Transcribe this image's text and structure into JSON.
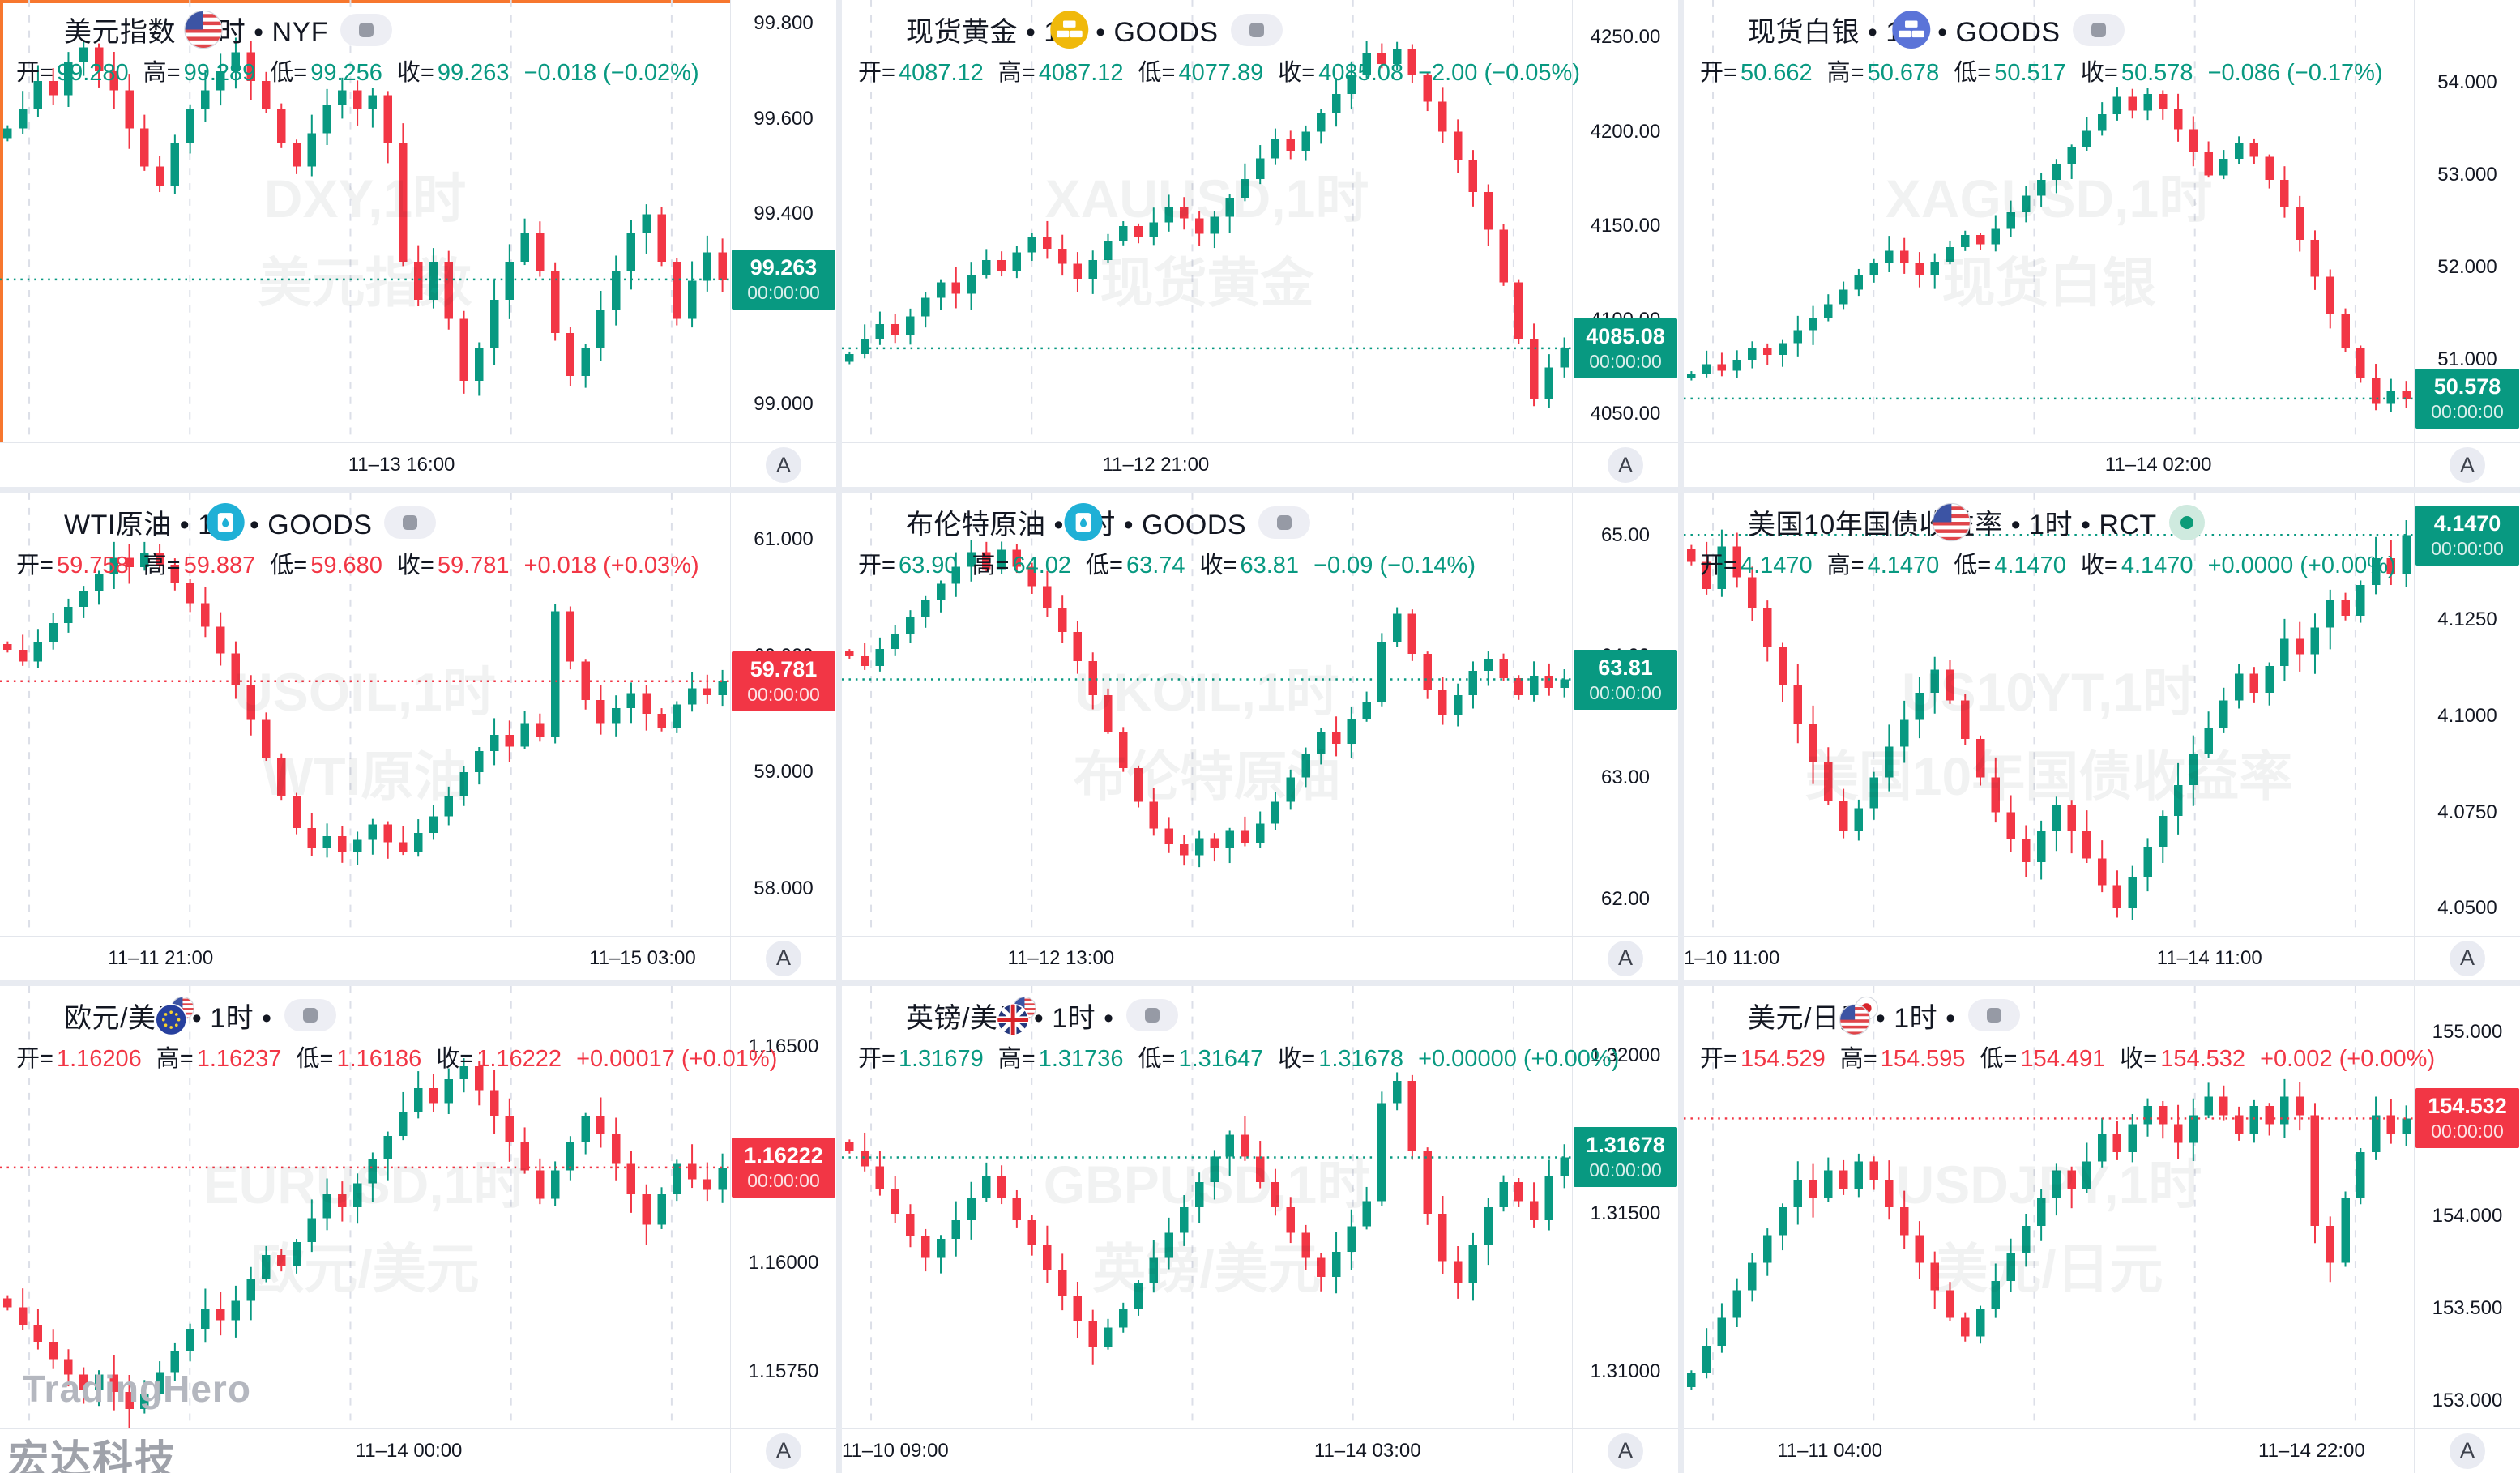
{
  "app": {
    "watermark_brand": "TradingHero",
    "watermark_vendor": "宏达科技",
    "autoscale_label": "A",
    "countdown": "00:00:00",
    "ohlc_labels": {
      "open": "开",
      "high": "高",
      "low": "低",
      "close": "收"
    }
  },
  "colors": {
    "up": "#089981",
    "down": "#F23645",
    "selection": "#f7772e",
    "axis_text": "#131722",
    "gridline": "#dcdfe8",
    "watermark": "rgba(22,26,37,0.06)"
  },
  "chart_data": [
    {
      "id": "dxy",
      "type": "candlestick",
      "selected": true,
      "brand_watermark": false,
      "title": "美元指数 • 1时 • NYF",
      "icon": "us-flag",
      "status": "pill",
      "ohlc": {
        "o": "99.280",
        "h": "99.289",
        "l": "99.256",
        "c": "99.263",
        "change": "−0.018 (−0.02%)",
        "color": "#089981"
      },
      "watermark": [
        "DXY,1时",
        "美元指数"
      ],
      "price_label": {
        "value": "99.263",
        "color": "#089981"
      },
      "y_ticks": [
        {
          "v": 99.8,
          "t": "99.800"
        },
        {
          "v": 99.6,
          "t": "99.600"
        },
        {
          "v": 99.4,
          "t": "99.400"
        },
        {
          "v": 99.0,
          "t": "99.000"
        }
      ],
      "x_ticks": [
        {
          "pct": 55,
          "t": "11–13 16:00"
        }
      ],
      "ylim": [
        98.92,
        99.85
      ],
      "wick": 0.045,
      "last": 99.263,
      "closes": [
        99.58,
        99.62,
        99.68,
        99.65,
        99.72,
        99.75,
        99.7,
        99.66,
        99.58,
        99.5,
        99.46,
        99.55,
        99.62,
        99.66,
        99.7,
        99.74,
        99.68,
        99.62,
        99.55,
        99.5,
        99.57,
        99.63,
        99.66,
        99.62,
        99.65,
        99.55,
        99.3,
        99.22,
        99.3,
        99.18,
        99.05,
        99.12,
        99.22,
        99.3,
        99.36,
        99.28,
        99.15,
        99.06,
        99.12,
        99.2,
        99.28,
        99.36,
        99.4,
        99.3,
        99.18,
        99.26,
        99.32,
        99.263
      ]
    },
    {
      "id": "xauusd",
      "type": "candlestick",
      "selected": false,
      "brand_watermark": false,
      "title": "现货黄金 • 1时 • GOODS",
      "icon": "gold",
      "status": "pill",
      "ohlc": {
        "o": "4087.12",
        "h": "4087.12",
        "l": "4077.89",
        "c": "4085.08",
        "change": "−2.00 (−0.05%)",
        "color": "#089981"
      },
      "watermark": [
        "XAUUSD,1时",
        "现货黄金"
      ],
      "price_label": {
        "value": "4085.08",
        "color": "#089981"
      },
      "y_ticks": [
        {
          "v": 4250,
          "t": "4250.00"
        },
        {
          "v": 4200,
          "t": "4200.00"
        },
        {
          "v": 4150,
          "t": "4150.00"
        },
        {
          "v": 4100,
          "t": "4100.00"
        },
        {
          "v": 4050,
          "t": "4050.00"
        }
      ],
      "x_ticks": [
        {
          "pct": 43,
          "t": "11–12 21:00"
        }
      ],
      "ylim": [
        4035,
        4270
      ],
      "wick": 9,
      "last": 4085.08,
      "closes": [
        4082,
        4090,
        4098,
        4092,
        4102,
        4112,
        4120,
        4114,
        4124,
        4132,
        4126,
        4136,
        4144,
        4138,
        4130,
        4122,
        4132,
        4142,
        4150,
        4144,
        4152,
        4160,
        4154,
        4146,
        4155,
        4165,
        4175,
        4186,
        4196,
        4190,
        4200,
        4210,
        4220,
        4230,
        4242,
        4236,
        4244,
        4230,
        4216,
        4200,
        4185,
        4168,
        4148,
        4120,
        4090,
        4058,
        4075,
        4085.08
      ]
    },
    {
      "id": "xagusd",
      "type": "candlestick",
      "selected": false,
      "brand_watermark": false,
      "title": "现货白银 • 1时 • GOODS",
      "icon": "silver",
      "status": "pill",
      "ohlc": {
        "o": "50.662",
        "h": "50.678",
        "l": "50.517",
        "c": "50.578",
        "change": "−0.086 (−0.17%)",
        "color": "#089981"
      },
      "watermark": [
        "XAGUSD,1时",
        "现货白银"
      ],
      "price_label": {
        "value": "50.578",
        "color": "#089981"
      },
      "y_ticks": [
        {
          "v": 54,
          "t": "54.000"
        },
        {
          "v": 53,
          "t": "53.000"
        },
        {
          "v": 52,
          "t": "52.000"
        },
        {
          "v": 51,
          "t": "51.000"
        }
      ],
      "x_ticks": [
        {
          "pct": 65,
          "t": "11–14 02:00"
        }
      ],
      "ylim": [
        50.1,
        54.9
      ],
      "wick": 0.17,
      "last": 50.578,
      "closes": [
        50.85,
        50.95,
        50.88,
        51.0,
        51.12,
        51.05,
        51.18,
        51.32,
        51.45,
        51.6,
        51.76,
        51.92,
        52.05,
        52.18,
        52.05,
        51.92,
        52.06,
        52.22,
        52.35,
        52.25,
        52.42,
        52.6,
        52.78,
        52.95,
        53.12,
        53.3,
        53.48,
        53.66,
        53.85,
        53.7,
        53.88,
        53.72,
        53.5,
        53.25,
        53.0,
        53.18,
        53.35,
        53.2,
        52.95,
        52.65,
        52.3,
        51.9,
        51.5,
        51.12,
        50.8,
        50.52,
        50.66,
        50.578
      ]
    },
    {
      "id": "usoil",
      "type": "candlestick",
      "selected": false,
      "brand_watermark": false,
      "title": "WTI原油 • 1时 • GOODS",
      "icon": "oil",
      "status": "pill",
      "ohlc": {
        "o": "59.758",
        "h": "59.887",
        "l": "59.680",
        "c": "59.781",
        "change": "+0.018 (+0.03%)",
        "color": "#F23645"
      },
      "watermark": [
        "USOIL,1时",
        "WTI原油"
      ],
      "price_label": {
        "value": "59.781",
        "color": "#F23645"
      },
      "y_ticks": [
        {
          "v": 61,
          "t": "61.000"
        },
        {
          "v": 60,
          "t": "60.000"
        },
        {
          "v": 59,
          "t": "59.000"
        },
        {
          "v": 58,
          "t": "58.000"
        }
      ],
      "x_ticks": [
        {
          "pct": 22,
          "t": "11–11 21:00"
        },
        {
          "pct": 88,
          "t": "11–15 03:00"
        }
      ],
      "ylim": [
        57.6,
        61.4
      ],
      "wick": 0.15,
      "last": 59.781,
      "closes": [
        60.05,
        59.95,
        60.12,
        60.28,
        60.42,
        60.55,
        60.7,
        60.84,
        60.76,
        60.88,
        60.78,
        60.62,
        60.45,
        60.25,
        60.02,
        59.75,
        59.45,
        59.12,
        58.8,
        58.52,
        58.35,
        58.45,
        58.32,
        58.42,
        58.55,
        58.4,
        58.32,
        58.48,
        58.62,
        58.8,
        59.0,
        59.18,
        59.32,
        59.22,
        59.42,
        59.3,
        60.38,
        59.95,
        59.62,
        59.42,
        59.55,
        59.68,
        59.5,
        59.38,
        59.58,
        59.72,
        59.66,
        59.781
      ]
    },
    {
      "id": "ukoil",
      "type": "candlestick",
      "selected": false,
      "brand_watermark": false,
      "title": "布伦特原油 • 1时 • GOODS",
      "icon": "oil",
      "status": "pill",
      "ohlc": {
        "o": "63.90",
        "h": "64.02",
        "l": "63.74",
        "c": "63.81",
        "change": "−0.09 (−0.14%)",
        "color": "#089981"
      },
      "watermark": [
        "UKOIL,1时",
        "布伦特原油"
      ],
      "price_label": {
        "value": "63.81",
        "color": "#089981"
      },
      "y_ticks": [
        {
          "v": 65,
          "t": "65.00"
        },
        {
          "v": 64,
          "t": "64.00"
        },
        {
          "v": 63,
          "t": "63.00"
        },
        {
          "v": 62,
          "t": "62.00"
        }
      ],
      "x_ticks": [
        {
          "pct": 30,
          "t": "11–12 13:00"
        }
      ],
      "ylim": [
        61.7,
        65.35
      ],
      "wick": 0.13,
      "last": 63.81,
      "closes": [
        64.0,
        63.92,
        64.06,
        64.18,
        64.32,
        64.46,
        64.6,
        64.74,
        64.86,
        64.72,
        64.88,
        64.74,
        64.58,
        64.4,
        64.2,
        63.96,
        63.68,
        63.38,
        63.08,
        62.8,
        62.58,
        62.45,
        62.36,
        62.5,
        62.42,
        62.56,
        62.46,
        62.62,
        62.8,
        63.0,
        63.2,
        63.38,
        63.28,
        63.48,
        63.62,
        64.12,
        64.35,
        64.02,
        63.72,
        63.52,
        63.68,
        63.88,
        63.98,
        63.82,
        63.68,
        63.84,
        63.74,
        63.81
      ]
    },
    {
      "id": "us10yt",
      "type": "candlestick",
      "selected": false,
      "brand_watermark": false,
      "title": "美国10年国债收益率 • 1时 • RCT",
      "icon": "us-flag",
      "status": "dot",
      "ohlc": {
        "o": "4.1470",
        "h": "4.1470",
        "l": "4.1470",
        "c": "4.1470",
        "change": "+0.0000 (+0.00%)",
        "color": "#089981"
      },
      "watermark": [
        "US10YT,1时",
        "美国10年国债收益率"
      ],
      "price_label": {
        "value": "4.1470",
        "color": "#089981"
      },
      "y_ticks": [
        {
          "v": 4.125,
          "t": "4.1250"
        },
        {
          "v": 4.1,
          "t": "4.1000"
        },
        {
          "v": 4.075,
          "t": "4.0750"
        },
        {
          "v": 4.05,
          "t": "4.0500"
        }
      ],
      "x_ticks": [
        {
          "pct": 0,
          "t": "1–10 11:00",
          "cut": true
        },
        {
          "pct": 72,
          "t": "11–14 11:00"
        }
      ],
      "ylim": [
        4.043,
        4.158
      ],
      "wick": 0.006,
      "last": 4.147,
      "closes": [
        4.14,
        4.133,
        4.144,
        4.136,
        4.128,
        4.118,
        4.108,
        4.098,
        4.088,
        4.078,
        4.07,
        4.076,
        4.084,
        4.092,
        4.099,
        4.106,
        4.112,
        4.104,
        4.094,
        4.084,
        4.075,
        4.068,
        4.062,
        4.07,
        4.077,
        4.07,
        4.063,
        4.056,
        4.05,
        4.058,
        4.066,
        4.074,
        4.082,
        4.09,
        4.097,
        4.104,
        4.111,
        4.106,
        4.113,
        4.12,
        4.116,
        4.123,
        4.13,
        4.126,
        4.134,
        4.141,
        4.137,
        4.147
      ]
    },
    {
      "id": "eurusd",
      "type": "candlestick",
      "selected": false,
      "brand_watermark": true,
      "title": "欧元/美元 • 1时 •",
      "icon": "eur-usd",
      "status": "pill",
      "ohlc": {
        "o": "1.16206",
        "h": "1.16237",
        "l": "1.16186",
        "c": "1.16222",
        "change": "+0.00017 (+0.01%)",
        "color": "#F23645"
      },
      "watermark": [
        "EURUSD,1时",
        "欧元/美元"
      ],
      "price_label": {
        "value": "1.16222",
        "color": "#F23645"
      },
      "y_ticks": [
        {
          "v": 1.165,
          "t": "1.16500"
        },
        {
          "v": 1.16,
          "t": "1.16000"
        },
        {
          "v": 1.1575,
          "t": "1.15750"
        }
      ],
      "x_ticks": [
        {
          "pct": 56,
          "t": "11–14 00:00"
        }
      ],
      "ylim": [
        1.1562,
        1.1664
      ],
      "wick": 0.0005,
      "last": 1.16222,
      "closes": [
        1.159,
        1.1586,
        1.1582,
        1.1578,
        1.15745,
        1.1571,
        1.15745,
        1.15705,
        1.15665,
        1.157,
        1.1575,
        1.158,
        1.1585,
        1.15895,
        1.1587,
        1.15915,
        1.15965,
        1.1602,
        1.15995,
        1.1605,
        1.16105,
        1.1616,
        1.1613,
        1.16185,
        1.1624,
        1.16295,
        1.1635,
        1.16405,
        1.1637,
        1.16425,
        1.16455,
        1.164,
        1.1634,
        1.1628,
        1.16215,
        1.1615,
        1.16215,
        1.1628,
        1.1634,
        1.163,
        1.1623,
        1.1616,
        1.1609,
        1.1616,
        1.1623,
        1.16195,
        1.1617,
        1.16222
      ]
    },
    {
      "id": "gbpusd",
      "type": "candlestick",
      "selected": false,
      "brand_watermark": false,
      "title": "英镑/美元 • 1时 •",
      "icon": "gbp-usd",
      "status": "pill",
      "ohlc": {
        "o": "1.31679",
        "h": "1.31736",
        "l": "1.31647",
        "c": "1.31678",
        "change": "+0.00000 (+0.00%)",
        "color": "#089981"
      },
      "watermark": [
        "GBPUSD,1时",
        "英镑/美元"
      ],
      "price_label": {
        "value": "1.31678",
        "color": "#089981"
      },
      "y_ticks": [
        {
          "v": 1.32,
          "t": "1.32000"
        },
        {
          "v": 1.315,
          "t": "1.31500"
        },
        {
          "v": 1.31,
          "t": "1.31000"
        }
      ],
      "x_ticks": [
        {
          "pct": 0,
          "t": "11–10 09:00",
          "cut": true
        },
        {
          "pct": 72,
          "t": "11–14 03:00"
        }
      ],
      "ylim": [
        1.3082,
        1.3222
      ],
      "wick": 0.00065,
      "last": 1.31678,
      "closes": [
        1.317,
        1.3165,
        1.3158,
        1.315,
        1.3143,
        1.3136,
        1.3142,
        1.3148,
        1.3155,
        1.3162,
        1.3155,
        1.3148,
        1.314,
        1.3132,
        1.3124,
        1.3116,
        1.3108,
        1.3114,
        1.312,
        1.3128,
        1.3136,
        1.3144,
        1.3152,
        1.316,
        1.3168,
        1.3175,
        1.3168,
        1.316,
        1.3152,
        1.3144,
        1.3136,
        1.313,
        1.3138,
        1.3146,
        1.3154,
        1.3185,
        1.3192,
        1.317,
        1.315,
        1.3135,
        1.3128,
        1.314,
        1.3152,
        1.316,
        1.3154,
        1.3148,
        1.3162,
        1.31678
      ]
    },
    {
      "id": "usdjpy",
      "type": "candlestick",
      "selected": false,
      "brand_watermark": false,
      "title": "美元/日元 • 1时 •",
      "icon": "usd-jpy",
      "status": "pill",
      "ohlc": {
        "o": "154.529",
        "h": "154.595",
        "l": "154.491",
        "c": "154.532",
        "change": "+0.002 (+0.00%)",
        "color": "#F23645"
      },
      "watermark": [
        "USDJPY,1时",
        "美元/日元"
      ],
      "price_label": {
        "value": "154.532",
        "color": "#F23645"
      },
      "y_ticks": [
        {
          "v": 155,
          "t": "155.000"
        },
        {
          "v": 154,
          "t": "154.000"
        },
        {
          "v": 153.5,
          "t": "153.500"
        },
        {
          "v": 153,
          "t": "153.000"
        }
      ],
      "x_ticks": [
        {
          "pct": 20,
          "t": "11–11 04:00"
        },
        {
          "pct": 86,
          "t": "11–14 22:00"
        }
      ],
      "ylim": [
        152.85,
        155.25
      ],
      "wick": 0.11,
      "last": 154.532,
      "closes": [
        153.15,
        153.3,
        153.45,
        153.6,
        153.75,
        153.9,
        154.05,
        154.2,
        154.1,
        154.25,
        154.15,
        154.3,
        154.2,
        154.05,
        153.9,
        153.75,
        153.6,
        153.45,
        153.35,
        153.5,
        153.65,
        153.8,
        153.95,
        154.1,
        154.25,
        154.15,
        154.3,
        154.45,
        154.35,
        154.5,
        154.6,
        154.5,
        154.4,
        154.55,
        154.65,
        154.55,
        154.45,
        154.6,
        154.5,
        154.65,
        154.55,
        153.95,
        153.75,
        154.1,
        154.35,
        154.55,
        154.45,
        154.532
      ]
    }
  ]
}
